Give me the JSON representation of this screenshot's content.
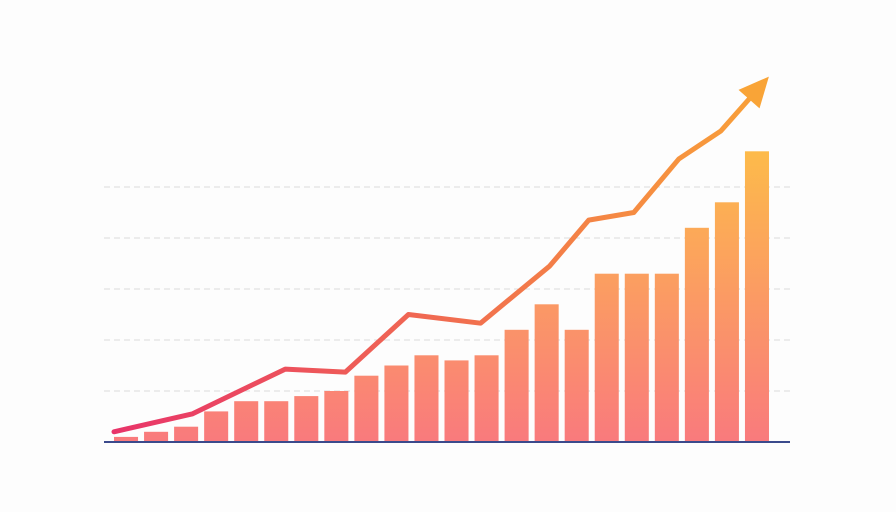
{
  "chart_data": {
    "type": "bar-line",
    "xlim": [
      -0.6,
      21.6
    ],
    "ylim": [
      0,
      7.5
    ],
    "yticks": [
      1,
      2,
      3,
      4,
      5
    ],
    "grid": true,
    "series": [
      {
        "type": "bar",
        "colors": [
          "#f97a7d",
          "#fdbb4a"
        ],
        "values": [
          0.1,
          0.2,
          0.3,
          0.6,
          0.8,
          0.8,
          0.9,
          1.0,
          1.3,
          1.5,
          1.7,
          1.6,
          1.7,
          2.2,
          2.7,
          2.2,
          3.3,
          3.3,
          3.3,
          4.2,
          4.7,
          5.7
        ]
      },
      {
        "type": "line",
        "colors": [
          "#e8336a",
          "#f9a437"
        ],
        "x": [
          -0.4,
          2.2,
          5.3,
          7.3,
          9.4,
          11.8,
          14.1,
          15.4,
          16.9,
          18.4,
          19.8,
          21.0
        ],
        "values": [
          0.2,
          0.55,
          1.43,
          1.37,
          2.5,
          2.33,
          3.45,
          4.35,
          4.5,
          5.55,
          6.1,
          6.9
        ]
      }
    ]
  }
}
